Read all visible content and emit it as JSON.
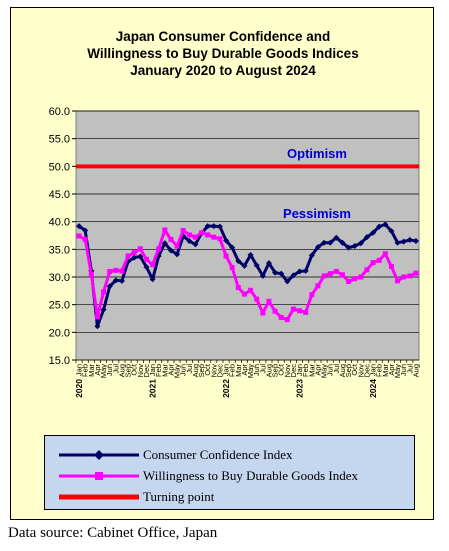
{
  "chart_data": {
    "type": "line",
    "title_lines": [
      "Japan Consumer Confidence and",
      "Willingness to Buy Durable Goods Indices",
      "January 2020 to August  2024"
    ],
    "ylim": [
      15,
      60
    ],
    "yticks": [
      "15.0",
      "20.0",
      "25.0",
      "30.0",
      "35.0",
      "40.0",
      "45.0",
      "50.0",
      "55.0",
      "60.0"
    ],
    "grid": "horizontal",
    "months": [
      "Jan",
      "Feb",
      "Mar",
      "Apr",
      "May",
      "Jun",
      "Jul",
      "Aug",
      "Sep",
      "Oct",
      "Nov",
      "Dec"
    ],
    "year_labels": [
      "2020",
      "2021",
      "2022",
      "2023",
      "2024"
    ],
    "annotations": {
      "optimism": "Optimism",
      "pessimism": "Pessimism"
    },
    "series": [
      {
        "name": "Consumer Confidence Index",
        "color": "#000066",
        "marker": "diamond",
        "values": [
          39.2,
          38.4,
          31.1,
          21.1,
          24.1,
          28.3,
          29.4,
          29.3,
          32.8,
          33.5,
          33.7,
          31.8,
          29.6,
          33.8,
          36.1,
          34.8,
          34.1,
          37.4,
          36.5,
          35.9,
          37.9,
          39.2,
          39.2,
          39.1,
          36.6,
          35.3,
          32.9,
          32.0,
          34.0,
          32.1,
          30.2,
          32.5,
          30.8,
          30.6,
          29.2,
          30.3,
          31.0,
          31.1,
          33.9,
          35.4,
          36.2,
          36.2,
          37.1,
          36.2,
          35.3,
          35.6,
          36.1,
          37.2,
          38.0,
          39.1,
          39.5,
          38.3,
          36.2,
          36.4,
          36.7,
          36.5
        ]
      },
      {
        "name": "Willingness to Buy Durable Goods Index",
        "color": "#ff00ff",
        "marker": "square",
        "values": [
          37.4,
          36.8,
          30.5,
          22.8,
          27.3,
          31.0,
          31.2,
          31.1,
          33.8,
          34.4,
          35.1,
          33.2,
          32.2,
          35.1,
          38.5,
          36.8,
          35.6,
          38.4,
          37.6,
          37.2,
          38.0,
          37.6,
          37.2,
          36.9,
          33.8,
          31.7,
          28.1,
          26.9,
          27.6,
          26.0,
          23.5,
          25.6,
          23.8,
          22.7,
          22.3,
          24.2,
          23.9,
          23.6,
          26.8,
          28.4,
          30.2,
          30.6,
          31.0,
          30.4,
          29.2,
          29.7,
          30.0,
          31.3,
          32.6,
          33.0,
          34.2,
          31.9,
          29.3,
          30.0,
          30.2,
          30.7
        ]
      },
      {
        "name": "Turning point",
        "color": "#ff0000",
        "marker": "none",
        "values": [
          50
        ]
      }
    ]
  },
  "footer": {
    "source": "Data source: Cabinet Office, Japan"
  }
}
